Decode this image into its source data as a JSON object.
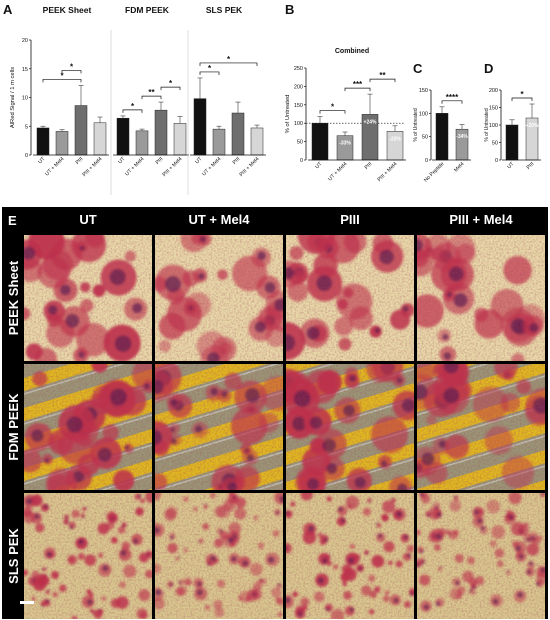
{
  "panels": {
    "A": "A",
    "B": "B",
    "C": "C",
    "D": "D",
    "E": "E"
  },
  "chart_data": [
    {
      "id": "A",
      "type": "bar",
      "ylabel": "AlRed Signal / 1 m cells",
      "ylim": [
        0,
        20
      ],
      "yticks": [
        "0",
        "5",
        "10",
        "15",
        "20"
      ],
      "groups": [
        {
          "title": "PEEK Sheet",
          "categories": [
            "UT",
            "UT + Mel4",
            "PIII",
            "PIII + Mel4"
          ],
          "values": [
            4.7,
            4.1,
            8.6,
            5.6
          ],
          "errors": [
            0.3,
            0.3,
            3.5,
            1.0
          ],
          "colors": [
            "#111111",
            "#9a9a9a",
            "#6e6e6e",
            "#d6d6d6"
          ],
          "significance": [
            {
              "from": 0,
              "to": 2,
              "label": "*"
            },
            {
              "from": 1,
              "to": 2,
              "label": "*"
            }
          ]
        },
        {
          "title": "FDM PEEK",
          "categories": [
            "UT",
            "UT + Mel4",
            "PIII",
            "PIII + Mel4"
          ],
          "values": [
            6.4,
            4.2,
            7.8,
            5.5
          ],
          "errors": [
            0.4,
            0.3,
            1.4,
            1.2
          ],
          "colors": [
            "#111111",
            "#9a9a9a",
            "#6e6e6e",
            "#d6d6d6"
          ],
          "significance": [
            {
              "from": 0,
              "to": 1,
              "label": "*"
            },
            {
              "from": 1,
              "to": 2,
              "label": "**"
            },
            {
              "from": 2,
              "to": 3,
              "label": "*"
            }
          ]
        },
        {
          "title": "SLS PEK",
          "categories": [
            "UT",
            "UT + Mel4",
            "PIII",
            "PIII + Mel4"
          ],
          "values": [
            9.8,
            4.5,
            7.3,
            4.7
          ],
          "errors": [
            3.6,
            0.5,
            1.9,
            0.5
          ],
          "colors": [
            "#111111",
            "#9a9a9a",
            "#6e6e6e",
            "#d6d6d6"
          ],
          "significance": [
            {
              "from": 0,
              "to": 1,
              "label": "*"
            },
            {
              "from": 0,
              "to": 3,
              "label": "*"
            }
          ]
        }
      ]
    },
    {
      "id": "B",
      "type": "bar",
      "title": "Combined",
      "ylabel": "% of Untreated",
      "ylim": [
        0,
        250
      ],
      "yticks": [
        "0",
        "50",
        "100",
        "150",
        "200",
        "250"
      ],
      "reference_line": 100,
      "categories": [
        "UT",
        "UT + Mel4",
        "PIII",
        "PIII + Mel4"
      ],
      "values": [
        100,
        66,
        124,
        78
      ],
      "errors": [
        18,
        10,
        55,
        15
      ],
      "colors": [
        "#111111",
        "#9a9a9a",
        "#6e6e6e",
        "#d6d6d6"
      ],
      "annotations": [
        "",
        "-33%",
        "+24%",
        "-22%"
      ],
      "significance": [
        {
          "from": 0,
          "to": 1,
          "label": "*"
        },
        {
          "from": 1,
          "to": 2,
          "label": "***"
        },
        {
          "from": 2,
          "to": 3,
          "label": "**"
        }
      ]
    },
    {
      "id": "C",
      "type": "bar",
      "ylabel": "% of Untreated",
      "ylim": [
        0,
        150
      ],
      "yticks": [
        "0",
        "50",
        "100",
        "150"
      ],
      "categories": [
        "No Peptide",
        "Mel4"
      ],
      "values": [
        100,
        66
      ],
      "errors": [
        14,
        10
      ],
      "colors": [
        "#111111",
        "#9a9a9a"
      ],
      "annotations": [
        "",
        "-34%"
      ],
      "significance": [
        {
          "from": 0,
          "to": 1,
          "label": "****"
        }
      ]
    },
    {
      "id": "D",
      "type": "bar",
      "ylabel": "% of Untreated",
      "ylim": [
        0,
        200
      ],
      "yticks": [
        "0",
        "50",
        "100",
        "150",
        "200"
      ],
      "categories": [
        "UT",
        "PIII"
      ],
      "values": [
        100,
        120
      ],
      "errors": [
        15,
        40
      ],
      "colors": [
        "#111111",
        "#d6d6d6"
      ],
      "annotations": [
        "",
        "+20%"
      ],
      "significance": [
        {
          "from": 0,
          "to": 1,
          "label": "*"
        }
      ]
    }
  ],
  "micrographs": {
    "columns": [
      "UT",
      "UT + Mel4",
      "PIII",
      "PIII + Mel4"
    ],
    "rows": [
      "PEEK Sheet",
      "FDM PEEK",
      "SLS PEK"
    ],
    "stain_color": "#c0304a",
    "background_colors": [
      "#e8d9a8",
      "#e0b820",
      "#d9c88e"
    ]
  }
}
